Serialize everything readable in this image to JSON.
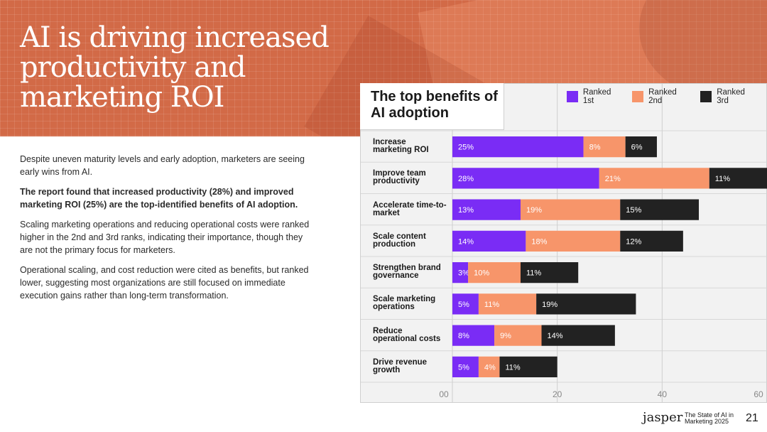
{
  "slide": {
    "title": "AI is driving increased productivity and marketing ROI",
    "paragraphs": [
      "Despite uneven maturity levels and early adoption, marketers are seeing early wins from AI.",
      "The report found that increased productivity (28%) and improved marketing ROI (25%) are the top-identified benefits of AI adoption.",
      "Scaling marketing operations and reducing operational costs were ranked higher in the 2nd and 3rd ranks, indicating their importance, though they are not the primary focus for marketers.",
      "Operational scaling, and cost reduction were cited as benefits, but ranked lower, suggesting most organizations are still focused on immediate execution gains rather than long-term transformation."
    ]
  },
  "footer": {
    "logo": "jasper",
    "report_line1": "The State of AI in",
    "report_line2": "Marketing 2025",
    "page": "21"
  },
  "colors": {
    "hero": "#d26a47",
    "first": "#7a2cf5",
    "second": "#f7956a",
    "third": "#222222"
  },
  "chart_data": {
    "type": "bar",
    "orientation": "horizontal",
    "stacked": true,
    "title": "The top benefits of AI adoption",
    "categories": [
      "Increase marketing ROI",
      "Improve team productivity",
      "Accelerate time-to-market",
      "Scale content production",
      "Strengthen brand governance",
      "Scale marketing operations",
      "Reduce operational costs",
      "Drive revenue growth"
    ],
    "series": [
      {
        "name": "Ranked 1st",
        "values": [
          25,
          28,
          13,
          14,
          3,
          5,
          8,
          5
        ],
        "labels": [
          "25%",
          "28%",
          "13%",
          "14%",
          "3%",
          "5%",
          "8%",
          "5%"
        ]
      },
      {
        "name": "Ranked 2nd",
        "values": [
          8,
          21,
          19,
          18,
          10,
          11,
          9,
          4
        ],
        "labels": [
          "8%",
          "21%",
          "19%",
          "18%",
          "10%",
          "11%",
          "9%",
          "4%"
        ]
      },
      {
        "name": "Ranked 3rd",
        "values": [
          6,
          11,
          15,
          12,
          11,
          19,
          14,
          11
        ],
        "labels": [
          "6%",
          "11%",
          "15%",
          "12%",
          "11%",
          "19%",
          "14%",
          "11%"
        ]
      }
    ],
    "xlim": [
      0,
      60
    ],
    "xticks": [
      "00",
      "20",
      "40",
      "60"
    ],
    "xtick_values": [
      0,
      20,
      40,
      60
    ],
    "legend_position": "top-right",
    "grid": true
  }
}
